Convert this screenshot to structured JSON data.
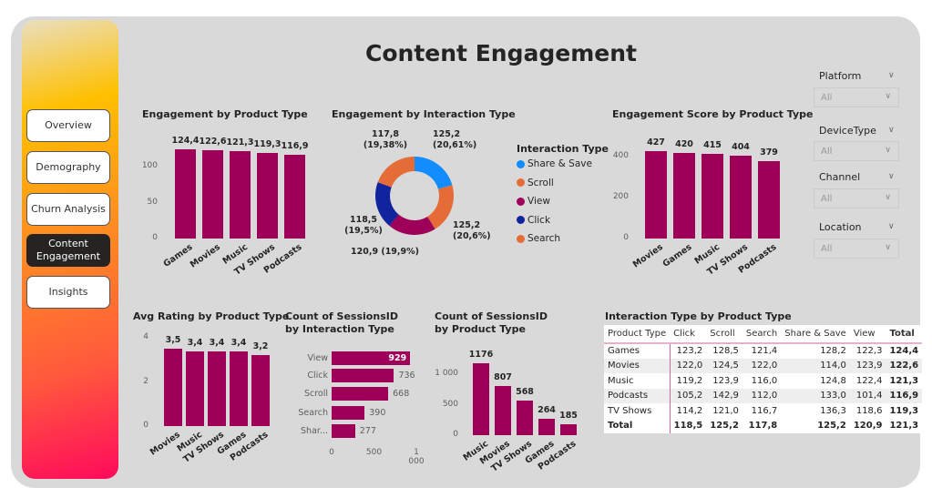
{
  "page_title": "Content Engagement",
  "colors": {
    "bar": "#9e0059",
    "share_save": "#118dff",
    "scroll": "#e66c37",
    "view": "#9e0059",
    "click": "#12239e",
    "search": "#e66c37"
  },
  "nav": [
    {
      "label": "Overview",
      "active": false
    },
    {
      "label": "Demography",
      "active": false
    },
    {
      "label": "Churn Analysis",
      "active": false
    },
    {
      "label": "Content Engagement",
      "active": true
    },
    {
      "label": "Insights",
      "active": false
    }
  ],
  "filters": [
    {
      "label": "Platform",
      "value": "All"
    },
    {
      "label": "DeviceType",
      "value": "All"
    },
    {
      "label": "Channel",
      "value": "All"
    },
    {
      "label": "Location",
      "value": "All"
    }
  ],
  "chart_data": [
    {
      "id": "eng_product",
      "type": "bar",
      "title": "Engagement by Product Type",
      "categories": [
        "Games",
        "Movies",
        "Music",
        "TV Shows",
        "Podcasts"
      ],
      "values": [
        124.4,
        122.6,
        121.3,
        119.3,
        116.9
      ],
      "data_labels": [
        "124,4",
        "122,6",
        "121,3",
        "119,3",
        "116,9"
      ],
      "yticks": [
        0,
        50,
        100
      ],
      "ytick_labels": [
        "0",
        "50",
        "100"
      ],
      "ylim": [
        0,
        140
      ]
    },
    {
      "id": "eng_interaction",
      "type": "pie",
      "title": "Engagement by Interaction Type",
      "legend_title": "Interaction Type",
      "legend_position": "right",
      "categories": [
        "Share & Save",
        "Scroll",
        "View",
        "Click",
        "Search"
      ],
      "values": [
        125.2,
        125.2,
        120.9,
        118.5,
        117.8
      ],
      "percents": [
        20.61,
        20.6,
        19.9,
        19.5,
        19.38
      ],
      "data_labels": [
        "125,2 (20,61%)",
        "125,2 (20,6%)",
        "120,9 (19,9%)",
        "118,5 (19,5%)",
        "117,8 (19,38%)"
      ]
    },
    {
      "id": "score_product",
      "type": "bar",
      "title": "Engagement Score by Product Type",
      "categories": [
        "Movies",
        "Games",
        "Music",
        "TV Shows",
        "Podcasts"
      ],
      "values": [
        427,
        420,
        415,
        404,
        379
      ],
      "data_labels": [
        "427",
        "420",
        "415",
        "404",
        "379"
      ],
      "yticks": [
        0,
        200,
        400
      ],
      "ytick_labels": [
        "0",
        "200",
        "400"
      ],
      "ylim": [
        0,
        480
      ]
    },
    {
      "id": "rating_product",
      "type": "bar",
      "title": "Avg Rating by Product Type",
      "categories": [
        "Movies",
        "Music",
        "TV Shows",
        "Games",
        "Podcasts"
      ],
      "values": [
        3.5,
        3.4,
        3.4,
        3.4,
        3.2
      ],
      "data_labels": [
        "3,5",
        "3,4",
        "3,4",
        "3,4",
        "3,2"
      ],
      "yticks": [
        0,
        2,
        4
      ],
      "ytick_labels": [
        "0",
        "2",
        "4"
      ],
      "ylim": [
        0,
        4
      ]
    },
    {
      "id": "sessions_interaction",
      "type": "bar",
      "orientation": "horizontal",
      "title": "Count of SessionsID by Interaction Type",
      "categories": [
        "View",
        "Click",
        "Scroll",
        "Search",
        "Shar..."
      ],
      "values": [
        929,
        736,
        668,
        390,
        277
      ],
      "data_labels": [
        "929",
        "736",
        "668",
        "390",
        "277"
      ],
      "xticks": [
        0,
        500,
        1000
      ],
      "xtick_labels": [
        "0",
        "500",
        "1 000"
      ],
      "xlim": [
        0,
        1000
      ]
    },
    {
      "id": "sessions_product",
      "type": "bar",
      "title": "Count of SessionsID by Product Type",
      "categories": [
        "Music",
        "Movies",
        "TV Shows",
        "Games",
        "Podcasts"
      ],
      "values": [
        1176,
        807,
        568,
        264,
        185
      ],
      "data_labels": [
        "1176",
        "807",
        "568",
        "264",
        "185"
      ],
      "yticks": [
        0,
        500,
        1000
      ],
      "ytick_labels": [
        "0",
        "500",
        "1 000"
      ],
      "ylim": [
        0,
        1000
      ]
    }
  ],
  "table": {
    "title": "Interaction Type by Product Type",
    "columns": [
      "Product Type",
      "Click",
      "Scroll",
      "Search",
      "Share & Save",
      "View",
      "Total"
    ],
    "rows": [
      [
        "Games",
        "123,2",
        "128,5",
        "121,4",
        "128,2",
        "122,3",
        "124,4"
      ],
      [
        "Movies",
        "122,0",
        "124,5",
        "122,0",
        "114,0",
        "123,9",
        "122,6"
      ],
      [
        "Music",
        "119,2",
        "123,9",
        "116,0",
        "124,8",
        "122,4",
        "121,3"
      ],
      [
        "Podcasts",
        "105,2",
        "142,9",
        "112,0",
        "133,0",
        "101,4",
        "116,9"
      ],
      [
        "TV Shows",
        "114,2",
        "121,0",
        "116,7",
        "136,3",
        "118,6",
        "119,3"
      ]
    ],
    "total": [
      "Total",
      "118,5",
      "125,2",
      "117,8",
      "125,2",
      "120,9",
      "121,3"
    ]
  }
}
